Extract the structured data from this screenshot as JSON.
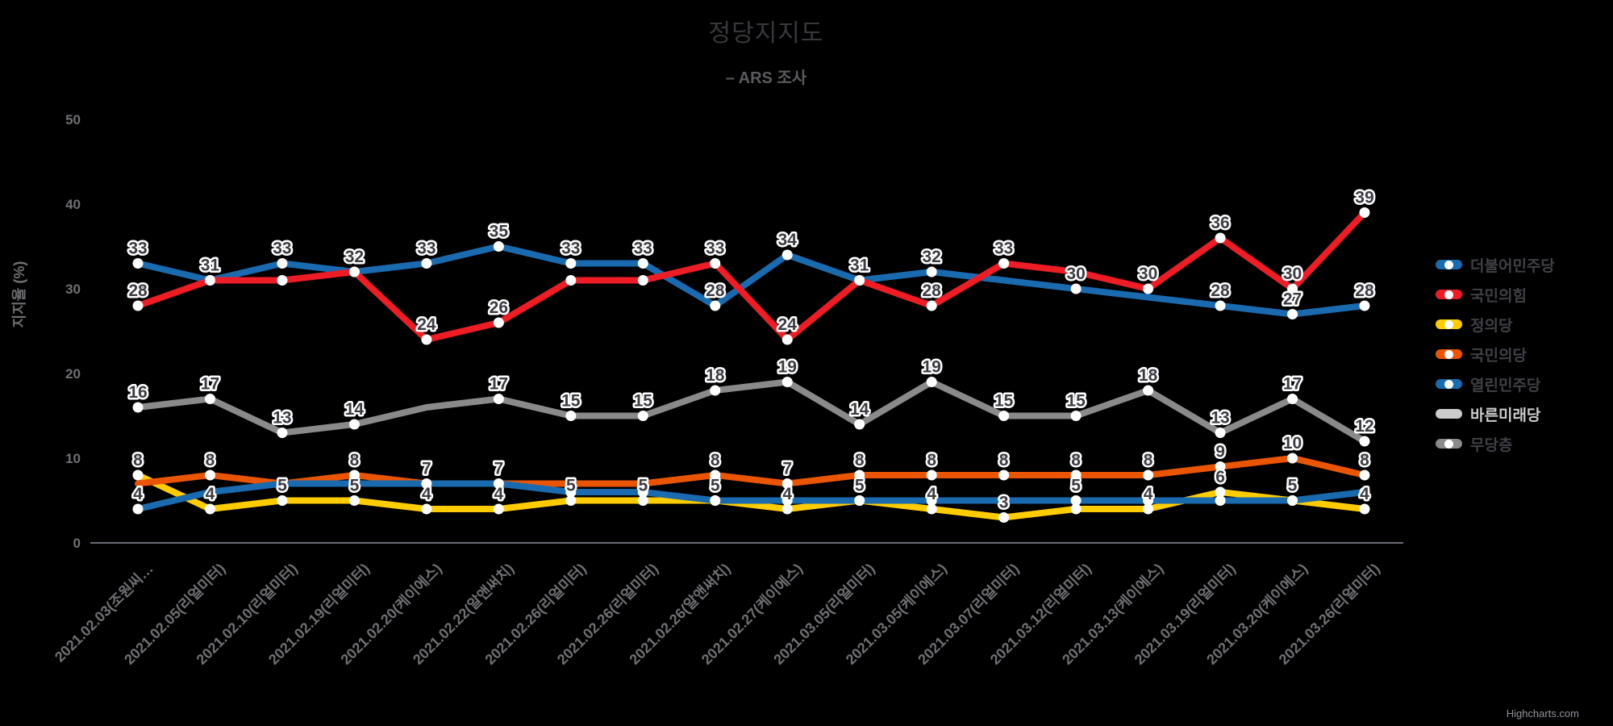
{
  "title": "정당지지도",
  "subtitle": "– ARS 조사",
  "y_axis_title": "지지율 (%)",
  "credits": "Highcharts.com",
  "colors": {
    "background": "#000000",
    "axis_line": "#ccd6eb",
    "axis_label": "#6f7073",
    "data_label": "#3b3b44",
    "data_label_outline": "#ffffff",
    "legend_hidden": "#cccccc"
  },
  "chart_data": {
    "type": "line",
    "title": "정당지지도",
    "subtitle": "– ARS 조사",
    "xlabel": "",
    "ylabel": "지지율 (%)",
    "ylim": [
      0,
      50
    ],
    "yticks": [
      0,
      10,
      20,
      30,
      40,
      50
    ],
    "grid": false,
    "legend_position": "right",
    "marker_color": "#ffffff",
    "categories": [
      "2021.02.03(조원씨…",
      "2021.02.05(리얼미터)",
      "2021.02.10(리얼미터)",
      "2021.02.19(리얼미터)",
      "2021.02.20(케이에스)",
      "2021.02.22(알앤써치)",
      "2021.02.26(리얼미터)",
      "2021.02.26(리얼미터)",
      "2021.02.26(알앤써치)",
      "2021.02.27(케이에스)",
      "2021.03.05(리얼미터)",
      "2021.03.05(케이에스)",
      "2021.03.07(리얼미터)",
      "2021.03.12(리얼미터)",
      "2021.03.13(케이에스)",
      "2021.03.19(리얼미터)",
      "2021.03.20(케이에스)",
      "2021.03.26(리얼미터)"
    ],
    "series": [
      {
        "name": "더불어민주당",
        "color": "#1a6ab0",
        "visible": true,
        "values": [
          33,
          31,
          33,
          32,
          33,
          35,
          33,
          33,
          28,
          34,
          31,
          32,
          31,
          30,
          29,
          28,
          27,
          28
        ],
        "labels": [
          33,
          31,
          33,
          32,
          33,
          35,
          33,
          33,
          28,
          34,
          31,
          32,
          null,
          30,
          null,
          28,
          27,
          28
        ],
        "markers": [
          1,
          1,
          1,
          1,
          1,
          1,
          1,
          1,
          1,
          1,
          1,
          1,
          0,
          1,
          0,
          1,
          1,
          1
        ]
      },
      {
        "name": "국민의힘",
        "color": "#ee1c25",
        "visible": true,
        "values": [
          28,
          31,
          31,
          32,
          24,
          26,
          31,
          31,
          33,
          24,
          31,
          28,
          33,
          32,
          30,
          36,
          30,
          39
        ],
        "labels": [
          28,
          null,
          null,
          null,
          24,
          26,
          null,
          null,
          33,
          24,
          null,
          28,
          33,
          null,
          30,
          36,
          30,
          39
        ],
        "markers": [
          1,
          1,
          1,
          1,
          1,
          1,
          1,
          1,
          1,
          1,
          1,
          1,
          1,
          0,
          1,
          1,
          1,
          1
        ]
      },
      {
        "name": "정의당",
        "color": "#ffcc00",
        "visible": true,
        "values": [
          8,
          4,
          5,
          5,
          4,
          4,
          5,
          5,
          5,
          4,
          5,
          4,
          3,
          4,
          4,
          6,
          5,
          4
        ],
        "labels": [
          8,
          4,
          5,
          5,
          4,
          4,
          5,
          5,
          null,
          4,
          null,
          4,
          3,
          null,
          4,
          6,
          null,
          4
        ],
        "markers": [
          1,
          1,
          1,
          1,
          1,
          1,
          1,
          1,
          1,
          1,
          1,
          1,
          1,
          1,
          1,
          1,
          1,
          1
        ]
      },
      {
        "name": "국민의당",
        "color": "#ea5504",
        "visible": true,
        "values": [
          7,
          8,
          7,
          8,
          7,
          7,
          7,
          7,
          8,
          7,
          8,
          8,
          8,
          8,
          8,
          9,
          10,
          8
        ],
        "labels": [
          null,
          8,
          null,
          8,
          null,
          null,
          null,
          null,
          8,
          7,
          8,
          8,
          8,
          8,
          8,
          9,
          10,
          8
        ],
        "markers": [
          0,
          1,
          0,
          1,
          0,
          0,
          1,
          1,
          1,
          1,
          1,
          1,
          1,
          1,
          1,
          1,
          1,
          1
        ]
      },
      {
        "name": "열린민주당",
        "color": "#1a6ab0",
        "visible": true,
        "values": [
          4,
          6,
          7,
          7,
          7,
          7,
          6,
          6,
          5,
          5,
          5,
          5,
          5,
          5,
          5,
          5,
          5,
          6
        ],
        "labels": [
          4,
          null,
          null,
          null,
          7,
          7,
          null,
          null,
          5,
          null,
          5,
          null,
          null,
          5,
          null,
          null,
          5,
          null
        ],
        "markers": [
          1,
          0,
          0,
          0,
          1,
          1,
          1,
          1,
          1,
          1,
          1,
          1,
          1,
          1,
          1,
          1,
          1,
          1
        ]
      },
      {
        "name": "바른미래당",
        "color": "#cccccc",
        "visible": false,
        "values": [],
        "labels": [],
        "markers": []
      },
      {
        "name": "무당층",
        "color": "#8a8a8a",
        "visible": true,
        "values": [
          16,
          17,
          13,
          14,
          16,
          17,
          15,
          15,
          18,
          19,
          14,
          19,
          15,
          15,
          18,
          13,
          17,
          12
        ],
        "labels": [
          16,
          17,
          13,
          14,
          null,
          17,
          15,
          15,
          18,
          19,
          14,
          19,
          15,
          15,
          18,
          13,
          17,
          12
        ],
        "markers": [
          1,
          1,
          1,
          1,
          0,
          1,
          1,
          1,
          1,
          1,
          1,
          1,
          1,
          1,
          1,
          1,
          1,
          1
        ]
      }
    ]
  }
}
